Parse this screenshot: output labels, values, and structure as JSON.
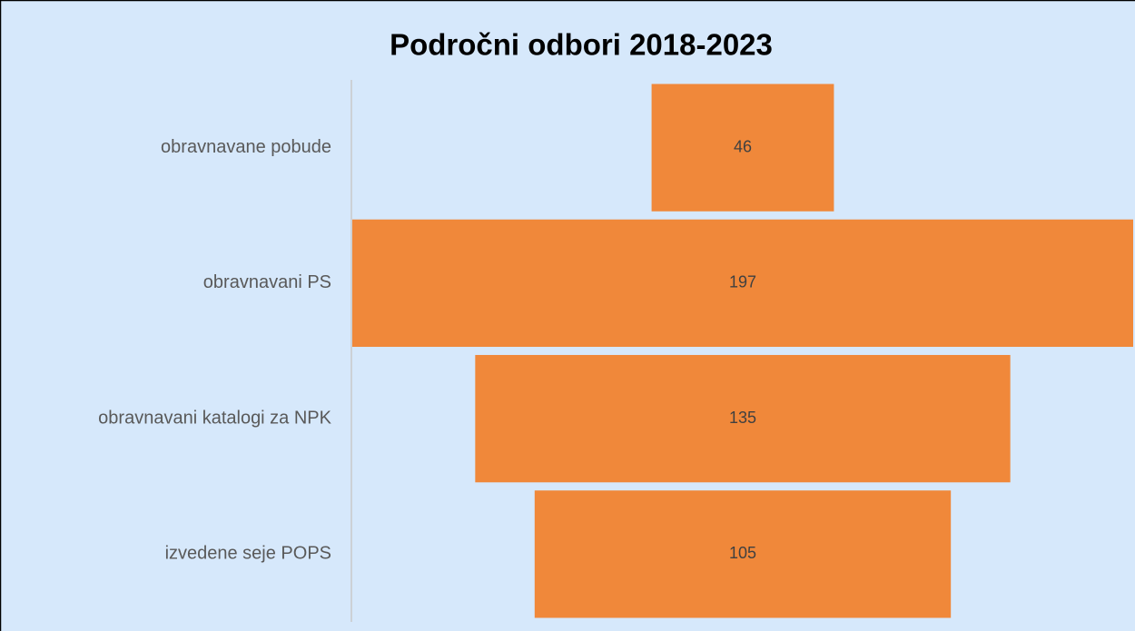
{
  "chart_data": {
    "type": "funnel",
    "title": "Področni odbori 2018-2023",
    "categories": [
      "obravnavane pobude",
      "obravnavani PS",
      "obravnavani katalogi za NPK",
      "izvedene seje POPS"
    ],
    "values": [
      46,
      197,
      135,
      105
    ],
    "color": "#f0883a"
  }
}
